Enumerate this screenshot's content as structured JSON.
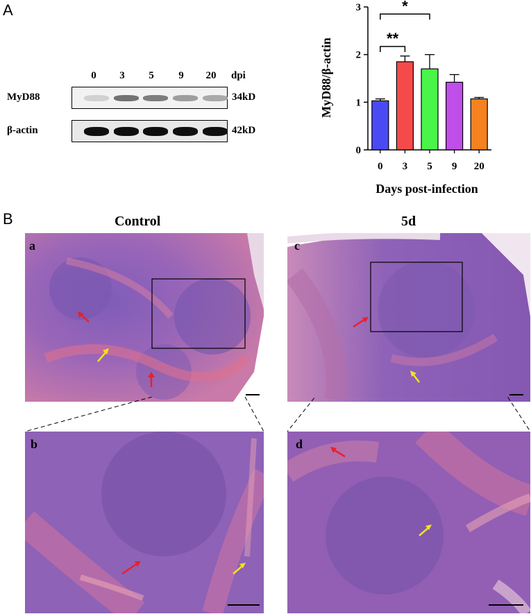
{
  "panel_a_label": "A",
  "panel_b_label": "B",
  "western_blot": {
    "lanes": [
      "0",
      "3",
      "5",
      "9",
      "20"
    ],
    "lane_unit": "dpi",
    "rows": [
      {
        "protein": "MyD88",
        "size": "34kD",
        "band_intensity": [
          0.12,
          0.55,
          0.5,
          0.35,
          0.3
        ]
      },
      {
        "protein": "β-actin",
        "size": "42kD",
        "band_intensity": [
          1,
          1,
          1,
          1,
          1
        ]
      }
    ]
  },
  "chart_data": {
    "type": "bar",
    "categories": [
      "0",
      "3",
      "5",
      "9",
      "20"
    ],
    "values": [
      1.03,
      1.85,
      1.7,
      1.42,
      1.07
    ],
    "errors": [
      0.04,
      0.12,
      0.3,
      0.16,
      0.03
    ],
    "colors": [
      "#4a4af5",
      "#f54a4a",
      "#4af54a",
      "#c04ee8",
      "#f5821f"
    ],
    "xlabel": "Days post-infection",
    "ylabel": "MyD88/β-actin",
    "ylim": [
      0,
      3
    ],
    "yticks": [
      "0",
      "1",
      "2",
      "3"
    ],
    "significance": [
      {
        "from": "0",
        "to": "3",
        "label": "**"
      },
      {
        "from": "0",
        "to": "5",
        "label": "*"
      }
    ]
  },
  "histology": {
    "conditions": [
      "Control",
      "5d"
    ],
    "subpanels": [
      "a",
      "b",
      "c",
      "d"
    ],
    "colors": {
      "he_purple": "#8a5fb8",
      "he_pink": "#e07a9a",
      "red_arrow": "#e8212b",
      "yellow_arrow": "#f2e31b"
    }
  }
}
